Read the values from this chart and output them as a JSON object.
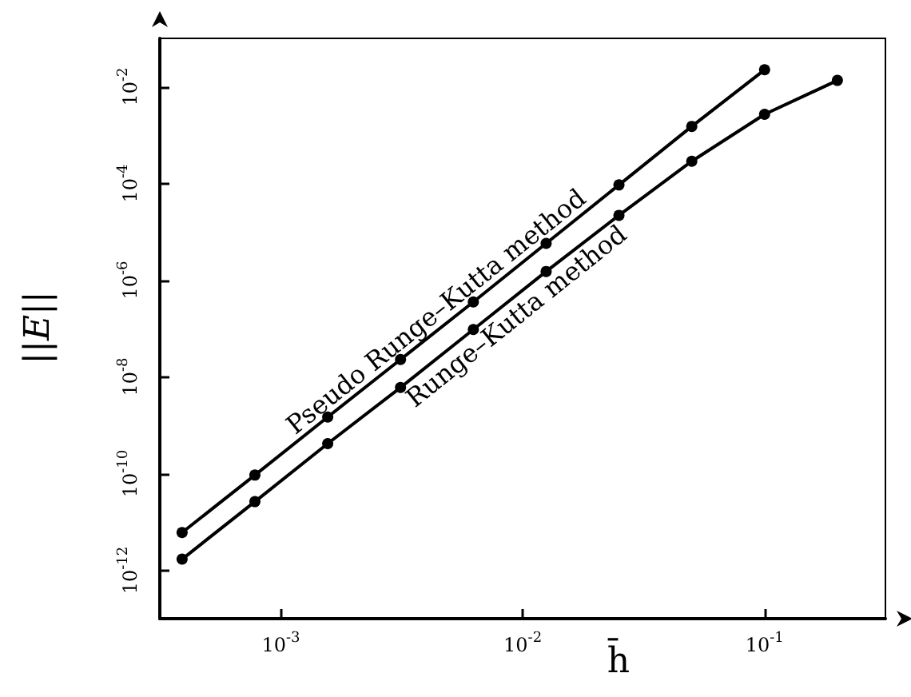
{
  "chart_data": {
    "type": "line",
    "xlabel": "h̄",
    "ylabel": "||E||",
    "log": "xy",
    "grid": false,
    "legend": false,
    "marker": "circle",
    "line_style": "solid",
    "xlim": [
      0.000316,
      0.316
    ],
    "ylim": [
      1e-13,
      0.1
    ],
    "xticks": [
      {
        "value": 0.001,
        "label": "10$^{-3}$"
      },
      {
        "value": 0.01,
        "label": "10$^{-2}$"
      },
      {
        "value": 0.1,
        "label": "10$^{-1}$"
      }
    ],
    "yticks": [
      {
        "value": 1e-12,
        "label": "10$^{-12}$"
      },
      {
        "value": 1e-10,
        "label": "10$^{-10}$"
      },
      {
        "value": 1e-08,
        "label": "10$^{-8}$"
      },
      {
        "value": 1e-06,
        "label": "10$^{-6}$"
      },
      {
        "value": 0.0001,
        "label": "10$^{-4}$"
      },
      {
        "value": 0.01,
        "label": "10$^{-2}$"
      }
    ],
    "series": [
      {
        "name": "Pseudo Runge–Kutta method",
        "color": "#000000",
        "x": [
          0.000390625,
          0.00078125,
          0.0015625,
          0.003125,
          0.00625,
          0.0125,
          0.025,
          0.05,
          0.1
        ],
        "values": [
          6.03e-12,
          9.33e-11,
          1.48e-09,
          2.29e-08,
          3.55e-07,
          5.75e-06,
          9.33e-05,
          0.00151,
          0.0224
        ]
      },
      {
        "name": "Runge–Kutta method",
        "color": "#000000",
        "x": [
          0.000390625,
          0.00078125,
          0.0015625,
          0.003125,
          0.00625,
          0.0125,
          0.025,
          0.05,
          0.1,
          0.2
        ],
        "values": [
          1.7e-12,
          2.63e-11,
          4.17e-10,
          6.03e-09,
          9.55e-08,
          1.51e-06,
          2.19e-05,
          0.000288,
          0.00269,
          0.0135
        ]
      }
    ]
  }
}
